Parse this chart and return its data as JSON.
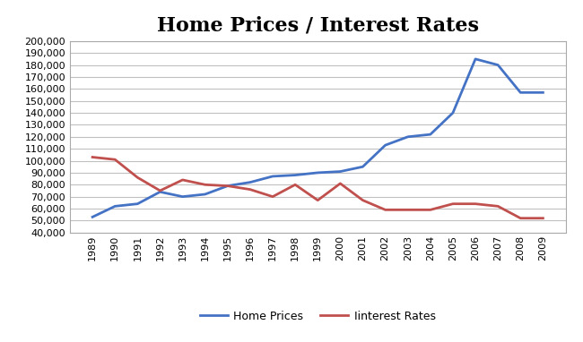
{
  "title": "Home Prices / Interest Rates",
  "years": [
    1989,
    1990,
    1991,
    1992,
    1993,
    1994,
    1995,
    1996,
    1997,
    1998,
    1999,
    2000,
    2001,
    2002,
    2003,
    2004,
    2005,
    2006,
    2007,
    2008,
    2009
  ],
  "home_prices": [
    53000,
    62000,
    64000,
    74000,
    70000,
    72000,
    79000,
    82000,
    87000,
    88000,
    90000,
    91000,
    95000,
    113000,
    120000,
    122000,
    140000,
    185000,
    180000,
    157000,
    157000
  ],
  "interest_rates": [
    103000,
    101000,
    86000,
    75000,
    84000,
    80000,
    79000,
    76000,
    70000,
    80000,
    67000,
    81000,
    67000,
    59000,
    59000,
    59000,
    64000,
    64000,
    62000,
    52000,
    52000
  ],
  "home_prices_color": "#4472C4",
  "interest_rates_color": "#C0504D",
  "background_color": "#FFFFFF",
  "plot_bg_color": "#FFFFFF",
  "grid_color": "#C0C0C0",
  "ylim_min": 40000,
  "ylim_max": 200000,
  "ytick_step": 10000,
  "legend_labels": [
    "Home Prices",
    "Iinterest Rates"
  ],
  "title_fontsize": 16,
  "line_width": 2.0,
  "border_color": "#AAAAAA"
}
